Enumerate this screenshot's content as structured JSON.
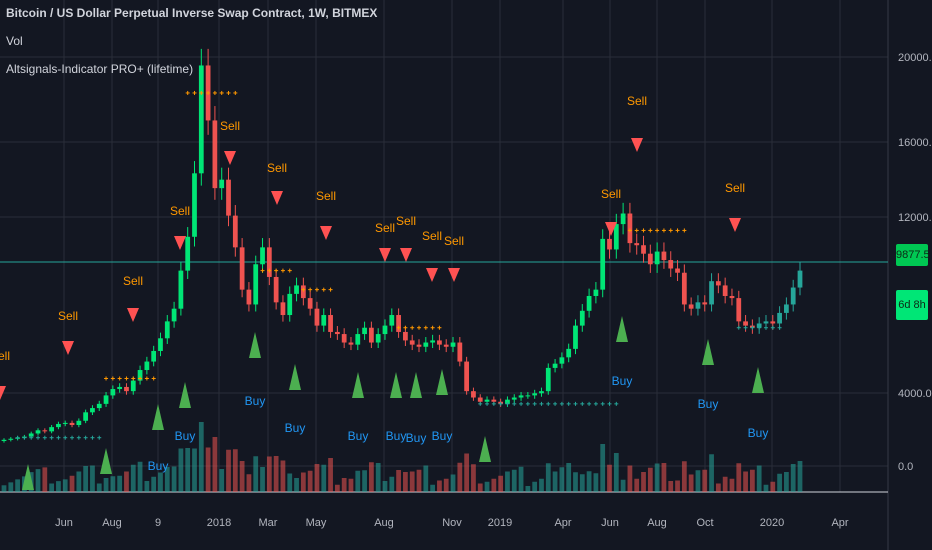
{
  "header": {
    "title": "Bitcoin / US Dollar Perpetual Inverse Swap Contract, 1W, BITMEX",
    "volume_label": "Vol",
    "indicator_label": "Altsignals-Indicator PRO+ (lifetime)"
  },
  "price_tag": {
    "last_price": "9877.5",
    "countdown": "6d 8h"
  },
  "colors": {
    "background": "#131722",
    "grid": "#2a2e39",
    "bull": "#26a69a",
    "bull_bright": "#00e676",
    "bear": "#ef5350",
    "buy_arrow": "#4caf50",
    "sell_arrow": "#ff5252",
    "buy_text": "#2196f3",
    "sell_text": "#ff9800",
    "axis_text": "#b2b5be",
    "price_line": "#26a69a"
  },
  "chart_data": {
    "type": "candlestick",
    "y_ticks": [
      "20000.0",
      "16000.0",
      "12000.0",
      "4000.0",
      "0.0"
    ],
    "x_ticks": [
      "Jun",
      "Aug",
      "9",
      "2018",
      "Mar",
      "May",
      "Aug",
      "Nov",
      "2019",
      "Apr",
      "Jun",
      "Aug",
      "Oct",
      "2020",
      "Apr"
    ],
    "price_range": [
      0,
      22500
    ],
    "last_price": 9877.5,
    "price_closes": [
      1900,
      1950,
      2000,
      2050,
      2200,
      2350,
      2300,
      2500,
      2650,
      2700,
      2600,
      2800,
      3200,
      3400,
      3600,
      4000,
      4300,
      4400,
      4200,
      4700,
      5200,
      5600,
      6100,
      6700,
      7500,
      8100,
      9900,
      11500,
      14500,
      19600,
      17000,
      13800,
      14200,
      12500,
      11000,
      9000,
      8300,
      10200,
      11000,
      9600,
      8400,
      7800,
      8800,
      9200,
      8600,
      8100,
      7300,
      7800,
      7000,
      6900,
      6500,
      6400,
      6900,
      7200,
      6500,
      6900,
      7300,
      7800,
      7000,
      6600,
      6400,
      6300,
      6500,
      6600,
      6400,
      6300,
      6500,
      5600,
      4200,
      3900,
      3700,
      3800,
      3700,
      3600,
      3800,
      3900,
      4000,
      4000,
      4100,
      4200,
      5300,
      5500,
      5800,
      6200,
      7300,
      8000,
      8700,
      9000,
      11400,
      10900,
      12100,
      12600,
      11200,
      11100,
      10700,
      10200,
      10800,
      10400,
      10000,
      9800,
      8300,
      8100,
      8400,
      8300,
      9400,
      9200,
      8700,
      8600,
      7500,
      7300,
      7200,
      7400,
      7500,
      7400,
      7900,
      8300,
      9100,
      9900
    ]
  },
  "signals": {
    "buy_label": "Buy",
    "sell_label": "Sell"
  }
}
